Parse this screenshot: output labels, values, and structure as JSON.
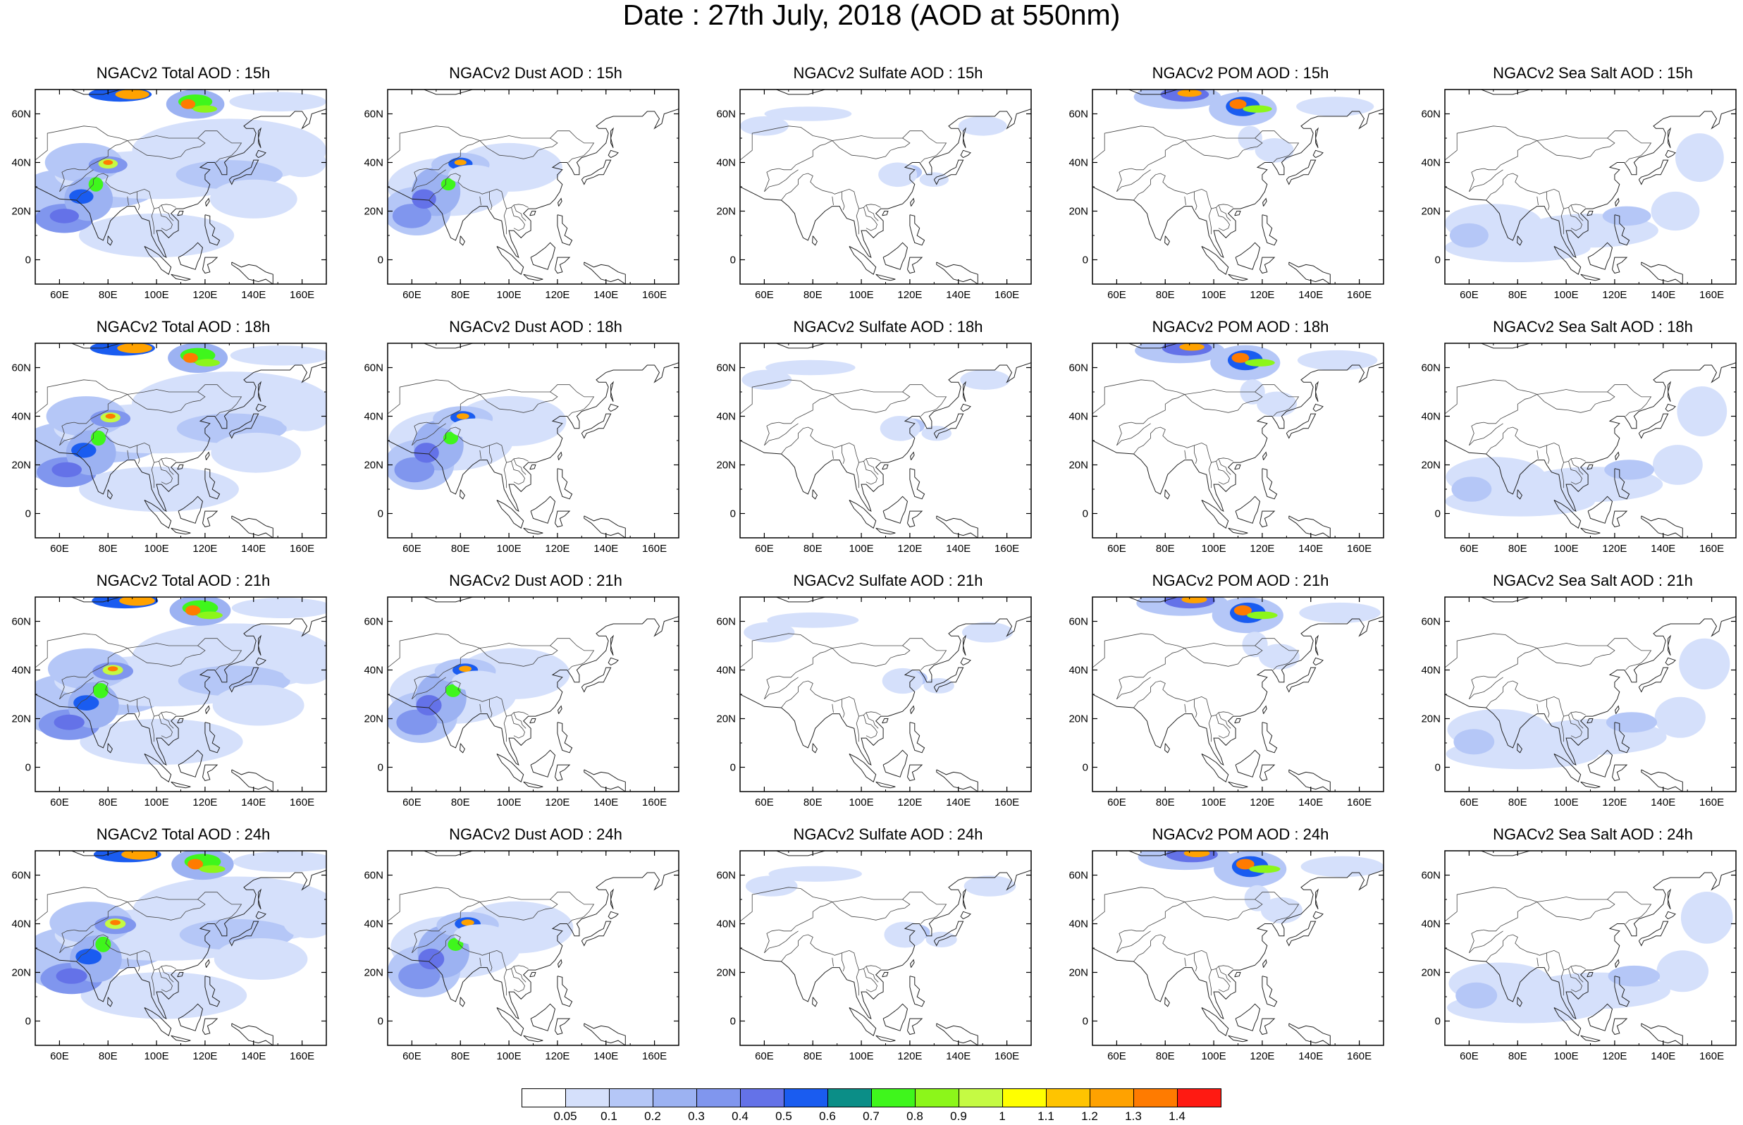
{
  "title": "Date : 27th July, 2018 (AOD at 550nm)",
  "map_grid": {
    "lon_range": [
      50,
      170
    ],
    "lat_range": [
      -10,
      70
    ],
    "lon_ticks": [
      60,
      80,
      100,
      120,
      140,
      160
    ],
    "lon_tick_labels": [
      "60E",
      "80E",
      "100E",
      "120E",
      "140E",
      "160E"
    ],
    "lat_ticks": [
      0,
      20,
      40,
      60
    ],
    "lat_tick_labels": [
      "0",
      "20N",
      "40N",
      "60N"
    ]
  },
  "panels": [
    {
      "title": "NGACv2 Total AOD : 15h",
      "species": "total",
      "hour": 15
    },
    {
      "title": "NGACv2 Dust AOD : 15h",
      "species": "dust",
      "hour": 15
    },
    {
      "title": "NGACv2 Sulfate AOD : 15h",
      "species": "sulfate",
      "hour": 15
    },
    {
      "title": "NGACv2 POM AOD : 15h",
      "species": "pom",
      "hour": 15
    },
    {
      "title": "NGACv2 Sea Salt AOD : 15h",
      "species": "seasalt",
      "hour": 15
    },
    {
      "title": "NGACv2 Total AOD : 18h",
      "species": "total",
      "hour": 18
    },
    {
      "title": "NGACv2 Dust AOD : 18h",
      "species": "dust",
      "hour": 18
    },
    {
      "title": "NGACv2 Sulfate AOD : 18h",
      "species": "sulfate",
      "hour": 18
    },
    {
      "title": "NGACv2 POM AOD : 18h",
      "species": "pom",
      "hour": 18
    },
    {
      "title": "NGACv2 Sea Salt AOD : 18h",
      "species": "seasalt",
      "hour": 18
    },
    {
      "title": "NGACv2 Total AOD : 21h",
      "species": "total",
      "hour": 21
    },
    {
      "title": "NGACv2 Dust AOD : 21h",
      "species": "dust",
      "hour": 21
    },
    {
      "title": "NGACv2 Sulfate AOD : 21h",
      "species": "sulfate",
      "hour": 21
    },
    {
      "title": "NGACv2 POM AOD : 21h",
      "species": "pom",
      "hour": 21
    },
    {
      "title": "NGACv2 Sea Salt AOD : 21h",
      "species": "seasalt",
      "hour": 21
    },
    {
      "title": "NGACv2 Total AOD : 24h",
      "species": "total",
      "hour": 24
    },
    {
      "title": "NGACv2 Dust AOD : 24h",
      "species": "dust",
      "hour": 24
    },
    {
      "title": "NGACv2 Sulfate AOD : 24h",
      "species": "sulfate",
      "hour": 24
    },
    {
      "title": "NGACv2 POM AOD : 24h",
      "species": "pom",
      "hour": 24
    },
    {
      "title": "NGACv2 Sea Salt  AOD : 24h",
      "species": "seasalt",
      "hour": 24
    }
  ],
  "colorbar": {
    "labels": [
      "0.05",
      "0.1",
      "0.2",
      "0.3",
      "0.4",
      "0.5",
      "0.6",
      "0.7",
      "0.8",
      "0.9",
      "1",
      "1.1",
      "1.2",
      "1.3",
      "1.4"
    ],
    "colors": [
      "#ffffff",
      "#d5e0fb",
      "#b5c7f7",
      "#9cb2f2",
      "#8096ee",
      "#6472e8",
      "#1a5cf0",
      "#0b8e87",
      "#3ff61c",
      "#8cf61a",
      "#c5fa43",
      "#ffff00",
      "#ffc400",
      "#ffa200",
      "#ff7b00",
      "#ff1a12"
    ]
  }
}
